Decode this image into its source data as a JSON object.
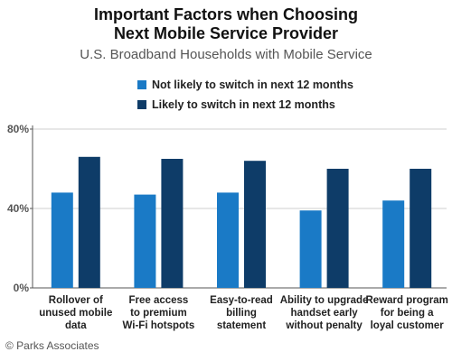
{
  "colors": {
    "series1": "#1a7ac6",
    "series2": "#0e3c68",
    "axis": "#555555",
    "grid": "#cfcfcf"
  },
  "chart_data": {
    "type": "bar",
    "title": "Important Factors when Choosing Next Mobile Service Provider",
    "subtitle": "U.S. Broadband Households with Mobile Service",
    "categories": [
      "Rollover of unused mobile data",
      "Free access to premium Wi-Fi hotspots",
      "Easy-to-read billing statement",
      "Ability to upgrade handset early without penalty",
      "Reward program for being a loyal customer"
    ],
    "category_lines": [
      [
        "Rollover of",
        "unused mobile",
        "data"
      ],
      [
        "Free access",
        "to premium",
        "Wi-Fi hotspots"
      ],
      [
        "Easy-to-read",
        "billing",
        "statement"
      ],
      [
        "Ability to upgrade",
        "handset early",
        "without penalty"
      ],
      [
        "Reward program",
        "for being a",
        "loyal customer"
      ]
    ],
    "series": [
      {
        "name": "Not likely to switch in next 12 months",
        "values": [
          48,
          47,
          48,
          39,
          44
        ]
      },
      {
        "name": "Likely to switch in next 12 months",
        "values": [
          66,
          65,
          64,
          60,
          60
        ]
      }
    ],
    "ylim": [
      0,
      80
    ],
    "yticks": [
      0,
      40,
      80
    ],
    "ytick_labels": [
      "0%",
      "40%",
      "80%"
    ],
    "legend": "top"
  },
  "title_lines": [
    "Important Factors when Choosing",
    "Next Mobile Service Provider"
  ],
  "copyright": "© Parks Associates"
}
